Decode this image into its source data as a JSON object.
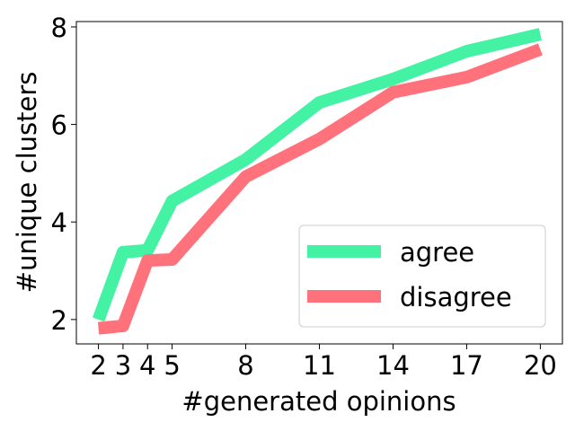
{
  "chart_data": {
    "type": "line",
    "x": [
      2,
      3,
      4,
      5,
      8,
      11,
      14,
      17,
      20
    ],
    "xlabel": "#generated opinions",
    "ylabel": "#unique clusters",
    "series": [
      {
        "name": "agree",
        "color": "#43f2a2",
        "values": [
          2.0,
          3.38,
          3.42,
          4.43,
          5.28,
          6.45,
          6.93,
          7.5,
          7.85
        ]
      },
      {
        "name": "disagree",
        "color": "#ff727b",
        "values": [
          1.82,
          1.87,
          3.21,
          3.23,
          4.93,
          5.7,
          6.66,
          6.97,
          7.54
        ]
      }
    ],
    "xlim": [
      1.1,
      20.9
    ],
    "ylim": [
      1.5,
      8.11
    ],
    "xticks": [
      2,
      3,
      4,
      5,
      8,
      11,
      14,
      17,
      20
    ],
    "yticks": [
      2,
      4,
      6,
      8
    ],
    "legend": "lower right"
  }
}
